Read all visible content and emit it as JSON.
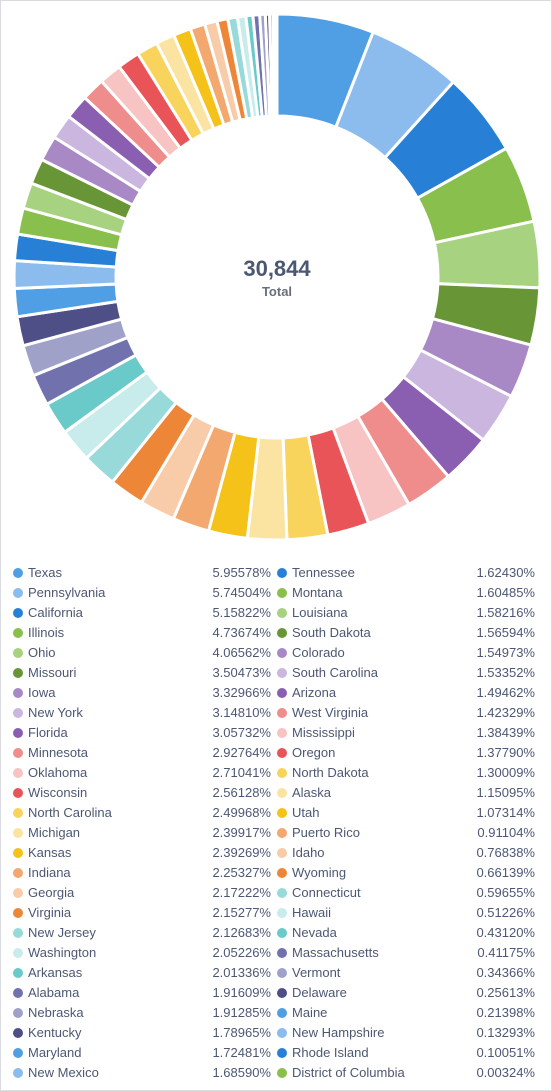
{
  "chart_data": {
    "type": "pie",
    "total_value": "30,844",
    "total_label": "Total",
    "slices": [
      {
        "name": "Texas",
        "percent": "5.95578%",
        "value": 5.95578,
        "color": "#509ee3"
      },
      {
        "name": "Pennsylvania",
        "percent": "5.74504%",
        "value": 5.74504,
        "color": "#8cbcee"
      },
      {
        "name": "California",
        "percent": "5.15822%",
        "color": "#2780d6",
        "value": 5.15822
      },
      {
        "name": "Illinois",
        "percent": "4.73674%",
        "value": 4.73674,
        "color": "#88bf4d"
      },
      {
        "name": "Ohio",
        "percent": "4.06562%",
        "value": 4.06562,
        "color": "#a7d280"
      },
      {
        "name": "Missouri",
        "percent": "3.50473%",
        "value": 3.50473,
        "color": "#689637"
      },
      {
        "name": "Iowa",
        "percent": "3.32966%",
        "value": 3.32966,
        "color": "#a989c5"
      },
      {
        "name": "New York",
        "percent": "3.14810%",
        "value": 3.1481,
        "color": "#cab6de"
      },
      {
        "name": "Florida",
        "percent": "3.05732%",
        "value": 3.05732,
        "color": "#8a5eb0"
      },
      {
        "name": "Minnesota",
        "percent": "2.92764%",
        "value": 2.92764,
        "color": "#ef8c8c"
      },
      {
        "name": "Oklahoma",
        "percent": "2.71041%",
        "value": 2.71041,
        "color": "#f7c3c3"
      },
      {
        "name": "Wisconsin",
        "percent": "2.56128%",
        "value": 2.56128,
        "color": "#e85457"
      },
      {
        "name": "North Carolina",
        "percent": "2.49968%",
        "value": 2.49968,
        "color": "#f9d45c"
      },
      {
        "name": "Michigan",
        "percent": "2.39917%",
        "value": 2.39917,
        "color": "#fbe4a2"
      },
      {
        "name": "Kansas",
        "percent": "2.39269%",
        "value": 2.39269,
        "color": "#f5c21a"
      },
      {
        "name": "Indiana",
        "percent": "2.25327%",
        "value": 2.25327,
        "color": "#f2a86f"
      },
      {
        "name": "Georgia",
        "percent": "2.17222%",
        "value": 2.17222,
        "color": "#f8cba9"
      },
      {
        "name": "Virginia",
        "percent": "2.15277%",
        "value": 2.15277,
        "color": "#ee8638"
      },
      {
        "name": "New Jersey",
        "percent": "2.12683%",
        "value": 2.12683,
        "color": "#98d9d9"
      },
      {
        "name": "Washington",
        "percent": "2.05226%",
        "value": 2.05226,
        "color": "#c8ebeb"
      },
      {
        "name": "Arkansas",
        "percent": "2.01336%",
        "value": 2.01336,
        "color": "#6ac9c9"
      },
      {
        "name": "Alabama",
        "percent": "1.91609%",
        "value": 1.91609,
        "color": "#7172ad"
      },
      {
        "name": "Nebraska",
        "percent": "1.91285%",
        "value": 1.91285,
        "color": "#a0a1c9"
      },
      {
        "name": "Kentucky",
        "percent": "1.78965%",
        "value": 1.78965,
        "color": "#4f4f88"
      },
      {
        "name": "Maryland",
        "percent": "1.72481%",
        "value": 1.72481,
        "color": "#509ee3"
      },
      {
        "name": "New Mexico",
        "percent": "1.68590%",
        "value": 1.6859,
        "color": "#8cbcee"
      },
      {
        "name": "Tennessee",
        "percent": "1.62430%",
        "value": 1.6243,
        "color": "#2780d6"
      },
      {
        "name": "Montana",
        "percent": "1.60485%",
        "value": 1.60485,
        "color": "#88bf4d"
      },
      {
        "name": "Louisiana",
        "percent": "1.58216%",
        "value": 1.58216,
        "color": "#a7d280"
      },
      {
        "name": "South Dakota",
        "percent": "1.56594%",
        "value": 1.56594,
        "color": "#689637"
      },
      {
        "name": "Colorado",
        "percent": "1.54973%",
        "value": 1.54973,
        "color": "#a989c5"
      },
      {
        "name": "South Carolina",
        "percent": "1.53352%",
        "value": 1.53352,
        "color": "#cab6de"
      },
      {
        "name": "Arizona",
        "percent": "1.49462%",
        "value": 1.49462,
        "color": "#8a5eb0"
      },
      {
        "name": "West Virginia",
        "percent": "1.42329%",
        "value": 1.42329,
        "color": "#ef8c8c"
      },
      {
        "name": "Mississippi",
        "percent": "1.38439%",
        "value": 1.38439,
        "color": "#f7c3c3"
      },
      {
        "name": "Oregon",
        "percent": "1.37790%",
        "value": 1.3779,
        "color": "#e85457"
      },
      {
        "name": "North Dakota",
        "percent": "1.30009%",
        "value": 1.30009,
        "color": "#f9d45c"
      },
      {
        "name": "Alaska",
        "percent": "1.15095%",
        "value": 1.15095,
        "color": "#fbe4a2"
      },
      {
        "name": "Utah",
        "percent": "1.07314%",
        "value": 1.07314,
        "color": "#f5c21a"
      },
      {
        "name": "Puerto Rico",
        "percent": "0.91104%",
        "value": 0.91104,
        "color": "#f2a86f"
      },
      {
        "name": "Idaho",
        "percent": "0.76838%",
        "value": 0.76838,
        "color": "#f8cba9"
      },
      {
        "name": "Wyoming",
        "percent": "0.66139%",
        "value": 0.66139,
        "color": "#ee8638"
      },
      {
        "name": "Connecticut",
        "percent": "0.59655%",
        "value": 0.59655,
        "color": "#98d9d9"
      },
      {
        "name": "Hawaii",
        "percent": "0.51226%",
        "value": 0.51226,
        "color": "#c8ebeb"
      },
      {
        "name": "Nevada",
        "percent": "0.43120%",
        "value": 0.4312,
        "color": "#6ac9c9"
      },
      {
        "name": "Massachusetts",
        "percent": "0.41175%",
        "value": 0.41175,
        "color": "#7172ad"
      },
      {
        "name": "Vermont",
        "percent": "0.34366%",
        "value": 0.34366,
        "color": "#a0a1c9"
      },
      {
        "name": "Delaware",
        "percent": "0.25613%",
        "value": 0.25613,
        "color": "#4f4f88"
      },
      {
        "name": "Maine",
        "percent": "0.21398%",
        "value": 0.21398,
        "color": "#509ee3"
      },
      {
        "name": "New Hampshire",
        "percent": "0.13293%",
        "value": 0.13293,
        "color": "#8cbcee"
      },
      {
        "name": "Rhode Island",
        "percent": "0.10051%",
        "value": 0.10051,
        "color": "#2780d6"
      },
      {
        "name": "District of Columbia",
        "percent": "0.00324%",
        "value": 0.00324,
        "color": "#88bf4d"
      }
    ],
    "legend_placement": "bottom"
  }
}
